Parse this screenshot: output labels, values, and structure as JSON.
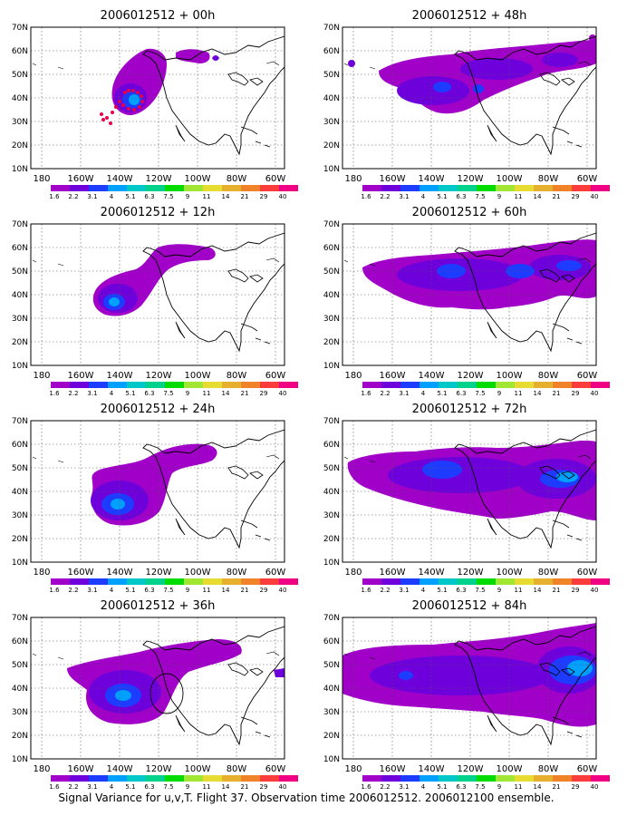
{
  "caption": "Signal Variance for u,v,T. Flight 37. Observation time 2006012512. 2006012100 ensemble.",
  "lat_labels": [
    "10N",
    "20N",
    "30N",
    "40N",
    "50N",
    "60N",
    "70N"
  ],
  "lon_labels": [
    "180",
    "160W",
    "140W",
    "120W",
    "100W",
    "80W",
    "60W"
  ],
  "legend": {
    "levels": [
      "1.6",
      "2.2",
      "3.1",
      "4",
      "5.1",
      "6.3",
      "7.5",
      "9",
      "11",
      "14",
      "21",
      "29",
      "40"
    ],
    "colors": [
      "#a000c8",
      "#6e00dc",
      "#1e3cff",
      "#00a0ff",
      "#00c8c8",
      "#00d28c",
      "#00dc00",
      "#a0e632",
      "#e6dc32",
      "#e6af2d",
      "#f08228",
      "#fa3c3c",
      "#f00082"
    ]
  },
  "colors": {
    "low": "#a000c8",
    "mid": "#6e00dc",
    "high": "#1e3cff",
    "peak": "#00a0ff",
    "obs_marker": "#e6004c"
  },
  "panels": [
    {
      "title": "2006012512 + 00h"
    },
    {
      "title": "2006012512 + 48h"
    },
    {
      "title": "2006012512 + 12h"
    },
    {
      "title": "2006012512 + 60h"
    },
    {
      "title": "2006012512 + 24h"
    },
    {
      "title": "2006012512 + 72h"
    },
    {
      "title": "2006012512 + 36h"
    },
    {
      "title": "2006012512 + 84h"
    }
  ]
}
